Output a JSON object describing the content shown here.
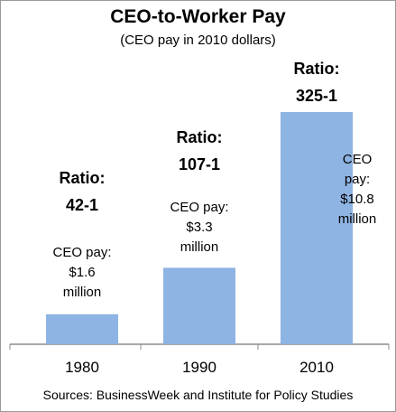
{
  "chart_data": {
    "type": "bar",
    "title": "CEO-to-Worker Pay",
    "subtitle": "(CEO pay in 2010 dollars)",
    "categories": [
      "1980",
      "1990",
      "2010"
    ],
    "values": [
      42,
      107,
      325
    ],
    "value_labels": [
      "42-1",
      "107-1",
      "325-1"
    ],
    "value_label_prefix": "Ratio:",
    "annotations": [
      "CEO pay: $1.6 million",
      "CEO pay: $3.3 million",
      "CEO pay: $10.8 million"
    ],
    "color": "#8eb4e3",
    "source": "Sources:  BusinessWeek and Institute for Policy Studies"
  }
}
